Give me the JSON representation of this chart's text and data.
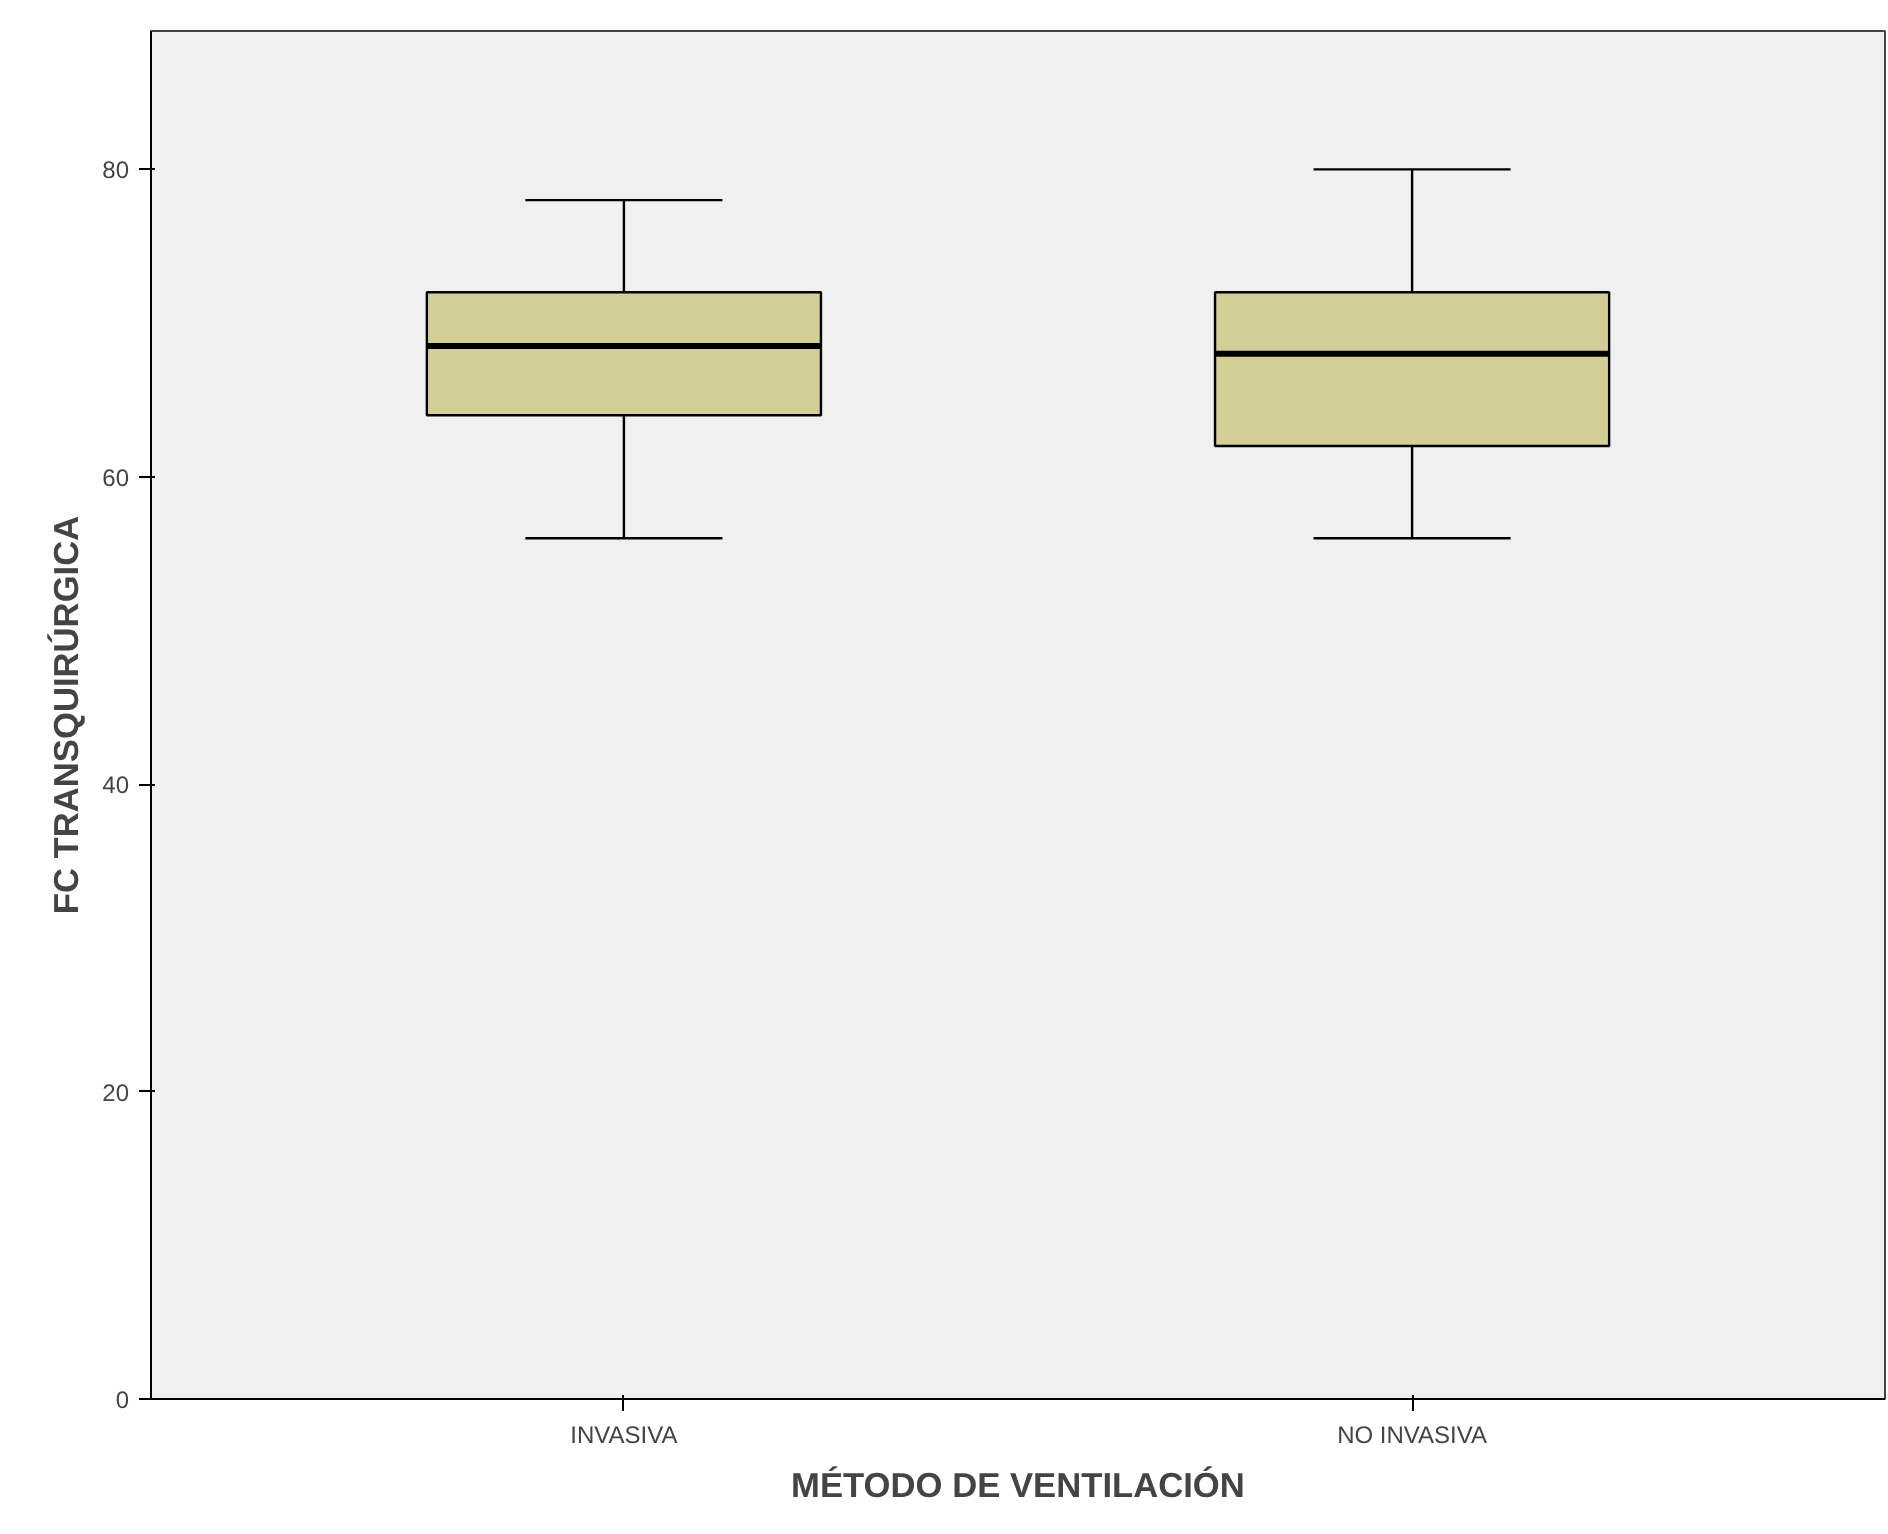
{
  "chart_data": {
    "type": "box",
    "xlabel": "MÉTODO DE VENTILACIÓN",
    "ylabel": "FC TRANSQUIRÚRGICA",
    "categories": [
      "INVASIVA",
      "NO INVASIVA"
    ],
    "boxes": [
      {
        "low": 56,
        "q1": 64,
        "median": 68.5,
        "q3": 72,
        "high": 78
      },
      {
        "low": 56,
        "q1": 62,
        "median": 68,
        "q3": 72,
        "high": 80
      }
    ],
    "color": "#d3cd98",
    "ylim": [
      0,
      89
    ],
    "yticks": [
      0,
      20,
      40,
      60,
      80
    ],
    "grid": false
  }
}
